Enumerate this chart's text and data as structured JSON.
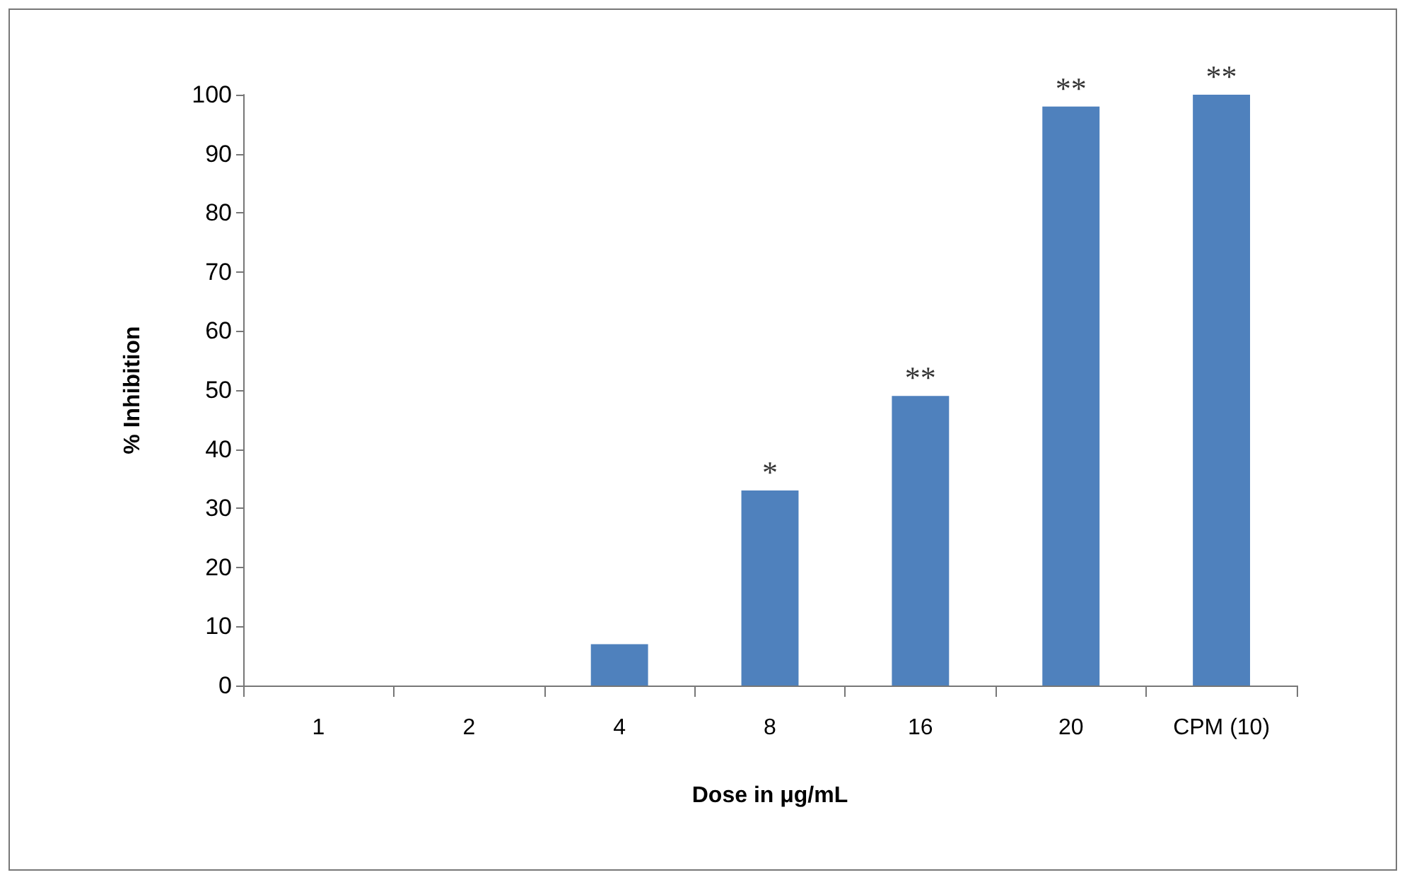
{
  "chart_data": {
    "type": "bar",
    "xlabel": "Dose in μg/mL",
    "ylabel": "% Inhibition",
    "categories": [
      "1",
      "2",
      "4",
      "8",
      "16",
      "20",
      "CPM (10)"
    ],
    "values": [
      0,
      0,
      7,
      33,
      49,
      98,
      100
    ],
    "color": "#4f81bd",
    "ylim": [
      0,
      100
    ],
    "yticks": [
      0,
      10,
      20,
      30,
      40,
      50,
      60,
      70,
      80,
      90,
      100
    ],
    "grid": false,
    "annotations": [
      {
        "text": "*",
        "x": "8",
        "y": 33
      },
      {
        "text": "**",
        "x": "16",
        "y": 49
      },
      {
        "text": "**",
        "x": "20",
        "y": 98
      },
      {
        "text": "**",
        "x": "CPM (10)",
        "y": 100
      }
    ]
  }
}
